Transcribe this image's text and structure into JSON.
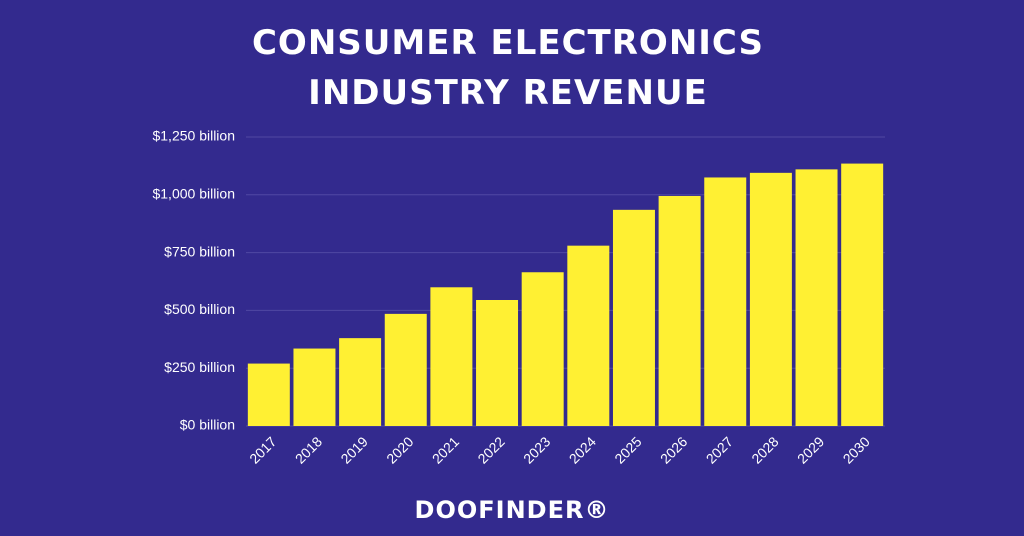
{
  "chart_data": {
    "type": "bar",
    "title": "CONSUMER ELECTRONICS INDUSTRY REVENUE",
    "categories": [
      "2017",
      "2018",
      "2019",
      "2020",
      "2021",
      "2022",
      "2023",
      "2024",
      "2025",
      "2026",
      "2027",
      "2028",
      "2029",
      "2030"
    ],
    "values": [
      270,
      335,
      380,
      485,
      600,
      545,
      665,
      780,
      935,
      995,
      1075,
      1095,
      1110,
      1135
    ],
    "color": "#fff033",
    "ylim": [
      0,
      1250
    ],
    "yticks": [
      {
        "value": 0,
        "label": "$0 billion"
      },
      {
        "value": 250,
        "label": "$250 billion"
      },
      {
        "value": 500,
        "label": "$500 billion"
      },
      {
        "value": 750,
        "label": "$750 billion"
      },
      {
        "value": 1000,
        "label": "$1,000 billion"
      },
      {
        "value": 1250,
        "label": "$1,250 billion"
      }
    ],
    "grid": true
  },
  "logo": "DOOFINDER®"
}
